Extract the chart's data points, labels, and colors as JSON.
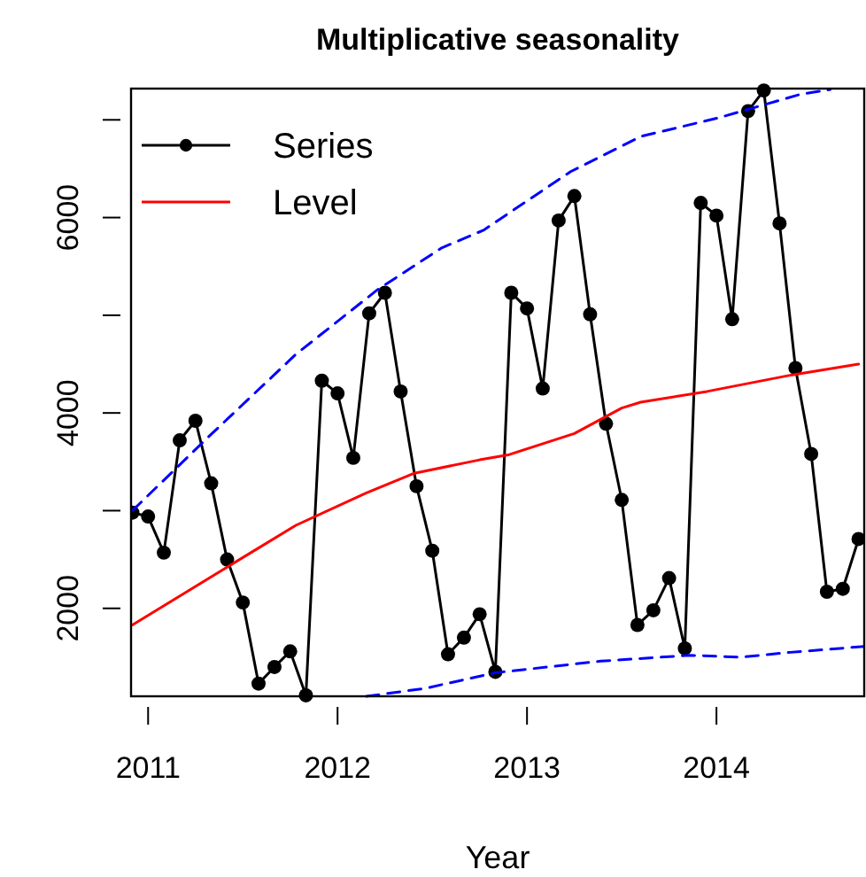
{
  "chart_data": {
    "type": "line",
    "title": "Multiplicative seasonality",
    "xlabel": "Year",
    "xlim": [
      2010.91,
      2014.78
    ],
    "xticks": [
      2011,
      2012,
      2013,
      2014
    ],
    "ylim": [
      1100,
      7320
    ],
    "yticks": [
      2000,
      {
        "value": 3000,
        "label": null
      },
      4000,
      {
        "value": 5000,
        "label": null
      },
      6000,
      {
        "value": 7000,
        "label": null
      }
    ],
    "legend": "top left",
    "grid": false,
    "series": [
      {
        "name": "Series",
        "color": "#000000",
        "marker": "circle",
        "line_style": "solid",
        "x": [
          2010.917,
          2011.0,
          2011.083,
          2011.167,
          2011.25,
          2011.333,
          2011.417,
          2011.5,
          2011.583,
          2011.667,
          2011.75,
          2011.833,
          2011.917,
          2012.0,
          2012.083,
          2012.167,
          2012.25,
          2012.333,
          2012.417,
          2012.5,
          2012.583,
          2012.667,
          2012.75,
          2012.833,
          2012.917,
          2013.0,
          2013.083,
          2013.167,
          2013.25,
          2013.333,
          2013.417,
          2013.5,
          2013.583,
          2013.667,
          2013.75,
          2013.833,
          2013.917,
          2014.0,
          2014.083,
          2014.167,
          2014.25,
          2014.333,
          2014.417,
          2014.5,
          2014.583,
          2014.667,
          2014.75
        ],
        "values": [
          2980,
          2940,
          2570,
          3720,
          3920,
          3280,
          2500,
          2060,
          1230,
          1400,
          1560,
          1110,
          4330,
          4200,
          3540,
          5020,
          5230,
          4220,
          3250,
          2590,
          1530,
          1700,
          1940,
          1350,
          5230,
          5070,
          4250,
          5970,
          6220,
          5010,
          3890,
          3110,
          1830,
          1980,
          2310,
          1590,
          6150,
          6020,
          4960,
          7090,
          7300,
          5940,
          4460,
          3580,
          2170,
          2200,
          2710
        ]
      },
      {
        "name": "Level",
        "color": "#ff0000",
        "marker": "none",
        "line_style": "solid",
        "x": [
          2010.917,
          2011.5,
          2011.78,
          2012.15,
          2012.4,
          2012.75,
          2012.9,
          2013.25,
          2013.5,
          2013.6,
          2013.95,
          2014.4,
          2014.75
        ],
        "values": [
          1830,
          2520,
          2850,
          3180,
          3380,
          3520,
          3570,
          3790,
          4050,
          4110,
          4220,
          4390,
          4500
        ]
      },
      {
        "color": "#0000ff",
        "marker": "none",
        "line_style": "dashed",
        "x": [
          2010.917,
          2011.316,
          2011.78,
          2012.21,
          2012.55,
          2012.77,
          2013.23,
          2013.6,
          2014.01,
          2014.44,
          2014.6
        ],
        "values": [
          3000,
          3750,
          4600,
          5260,
          5690,
          5870,
          6470,
          6830,
          7020,
          7260,
          7310
        ]
      },
      {
        "color": "#0000ff",
        "marker": "none",
        "line_style": "dashed",
        "x": [
          2012.153,
          2012.46,
          2012.83,
          2013.39,
          2013.86,
          2014.13,
          2014.39,
          2014.78
        ],
        "values": [
          1100,
          1180,
          1340,
          1460,
          1520,
          1500,
          1550,
          1610
        ]
      }
    ]
  }
}
